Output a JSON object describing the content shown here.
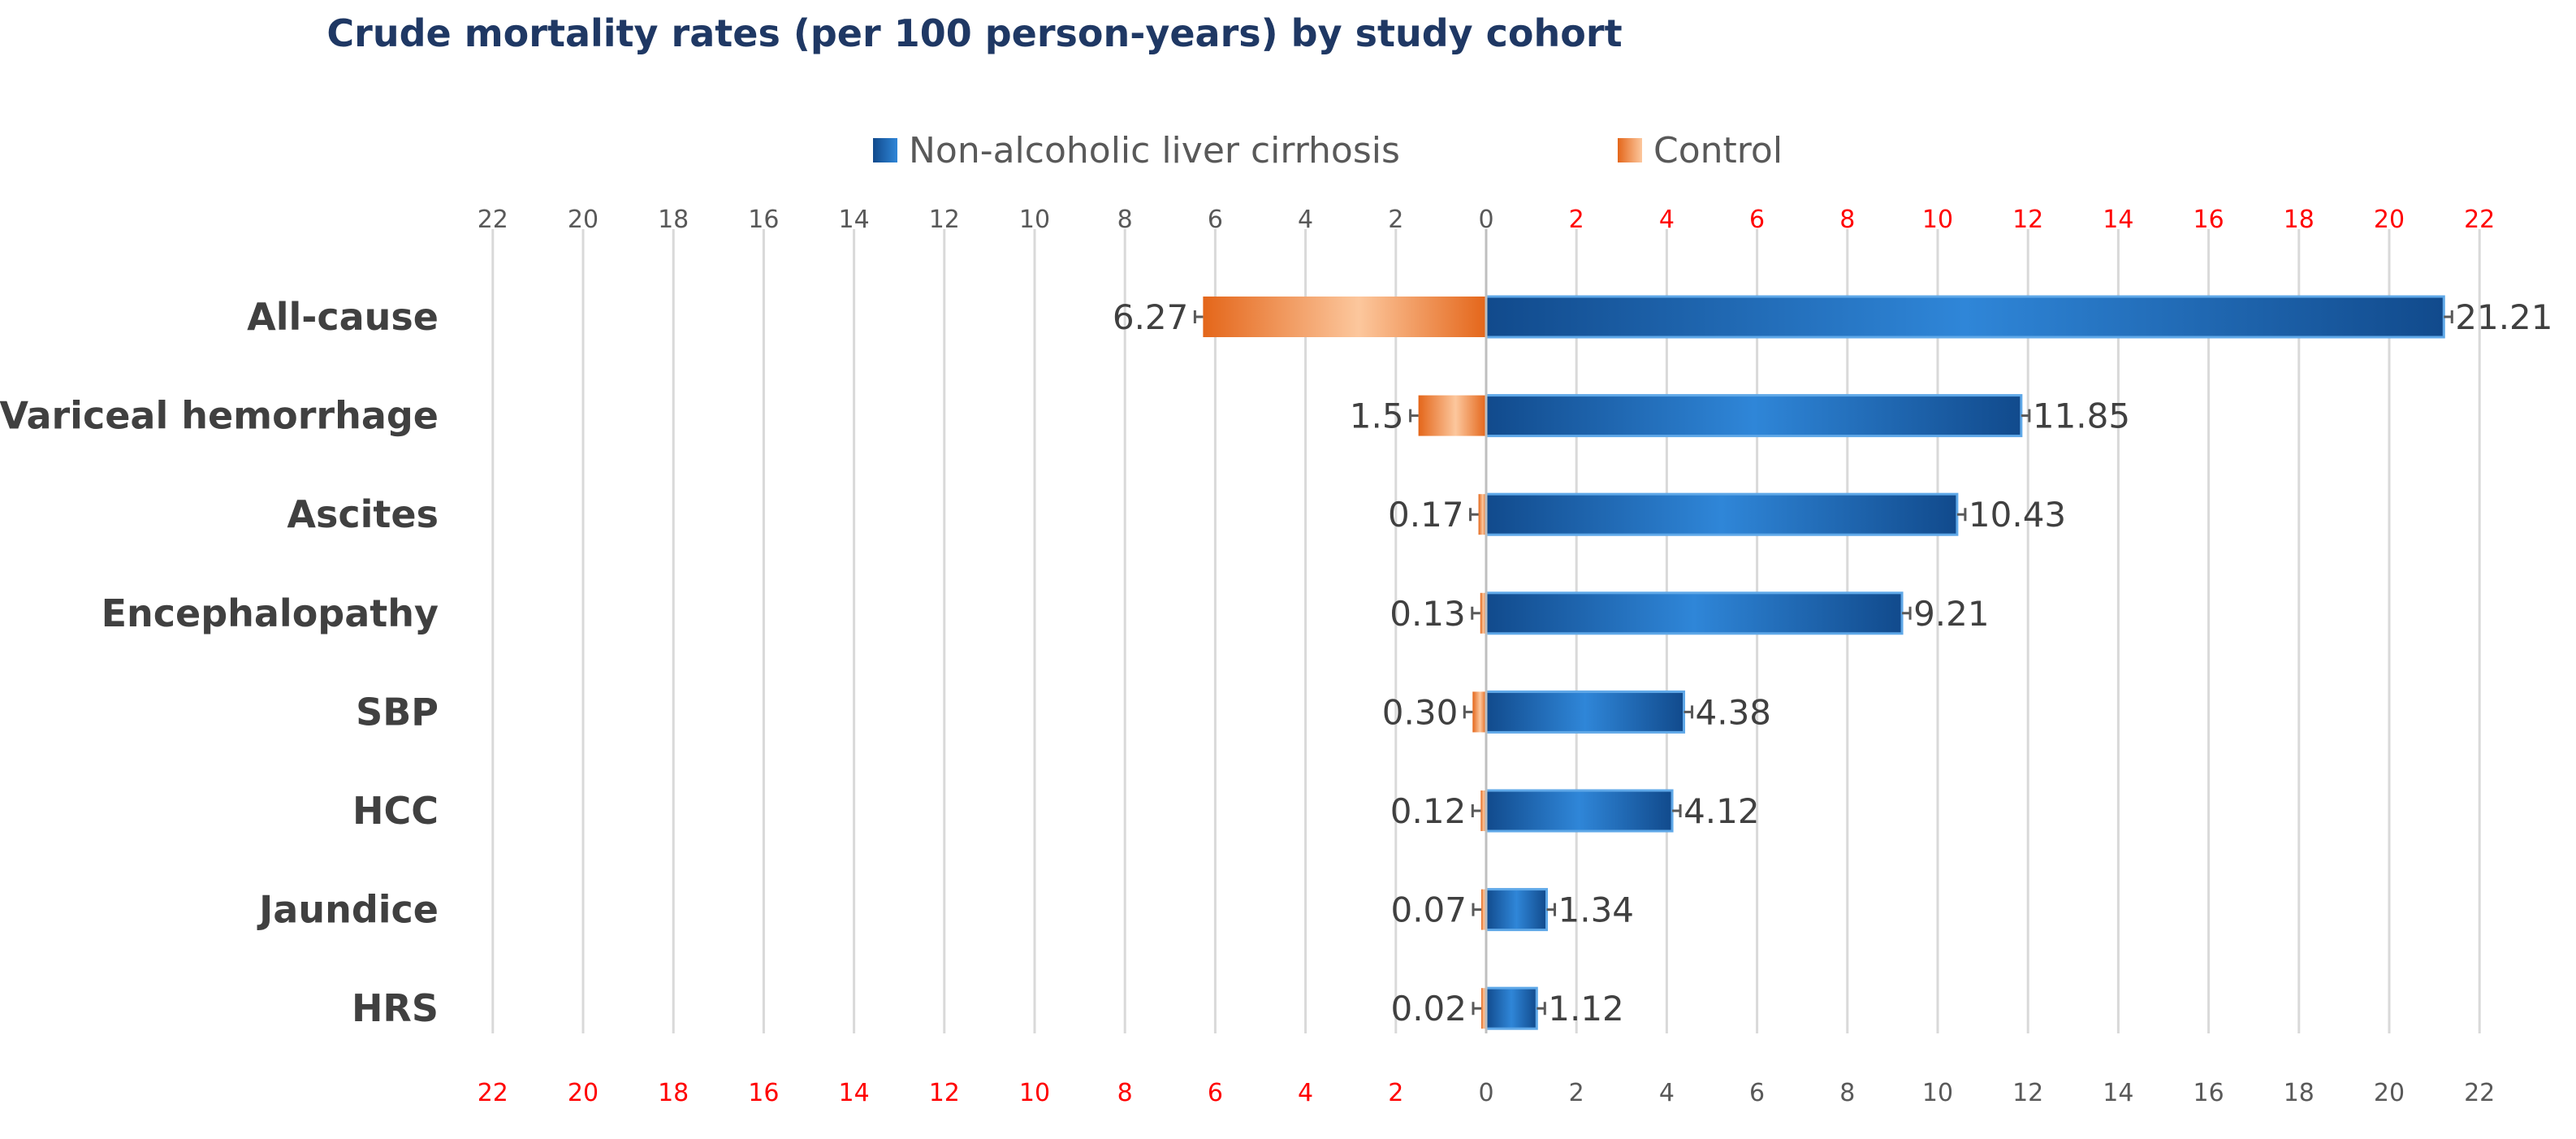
{
  "chart_data": {
    "type": "bar",
    "orientation": "horizontal-butterfly",
    "title": "Crude mortality rates (per 100 person-years) by study cohort",
    "categories": [
      "All-cause",
      "Variceal hemorrhage",
      "Ascites",
      "Encephalopathy",
      "SBP",
      "HCC",
      "Jaundice",
      "HRS"
    ],
    "series": [
      {
        "name": "Non-alcoholic liver cirrhosis",
        "side": "right",
        "color": "#1f6cc4",
        "values": [
          21.21,
          11.85,
          10.43,
          9.21,
          4.38,
          4.12,
          1.34,
          1.12
        ],
        "labels": [
          "21.21",
          "11.85",
          "10.43",
          "9.21",
          "4.38",
          "4.12",
          "1.34",
          "1.12"
        ]
      },
      {
        "name": "Control",
        "side": "left",
        "color": "#f07b2a",
        "values": [
          6.27,
          1.5,
          0.17,
          0.13,
          0.3,
          0.12,
          0.07,
          0.02
        ],
        "labels": [
          "6.27",
          "1.5",
          "0.17",
          "0.13",
          "0.30",
          "0.12",
          "0.07",
          "0.02"
        ]
      }
    ],
    "x_range": [
      -22,
      22
    ],
    "tick_values": [
      22,
      20,
      18,
      16,
      14,
      12,
      10,
      8,
      6,
      4,
      2,
      0,
      2,
      4,
      6,
      8,
      10,
      12,
      14,
      16,
      18,
      20,
      22
    ],
    "top_axis": {
      "tick_labels": [
        "22",
        "20",
        "18",
        "16",
        "14",
        "12",
        "10",
        "8",
        "6",
        "4",
        "2",
        "0",
        "2",
        "4",
        "6",
        "8",
        "10",
        "12",
        "14",
        "16",
        "18",
        "20",
        "22"
      ],
      "highlight_side": "right"
    },
    "bottom_axis": {
      "tick_labels": [
        "22",
        "20",
        "18",
        "16",
        "14",
        "12",
        "10",
        "8",
        "6",
        "4",
        "2",
        "0",
        "2",
        "4",
        "6",
        "8",
        "10",
        "12",
        "14",
        "16",
        "18",
        "20",
        "22"
      ],
      "highlight_side": "left"
    },
    "tick_colors": {
      "normal": "#595959",
      "highlight": "#ff0000"
    },
    "grid": true,
    "legend_position": "top-center",
    "error_bars": true
  },
  "colors": {
    "title": "#1f3864",
    "gridline": "#d9d9d9",
    "category_label": "#404040",
    "data_label": "#404040",
    "blue_dark": "#114a8c",
    "blue_light": "#2f86d8",
    "orange_dark": "#e4661a",
    "orange_light": "#fcc79d"
  }
}
